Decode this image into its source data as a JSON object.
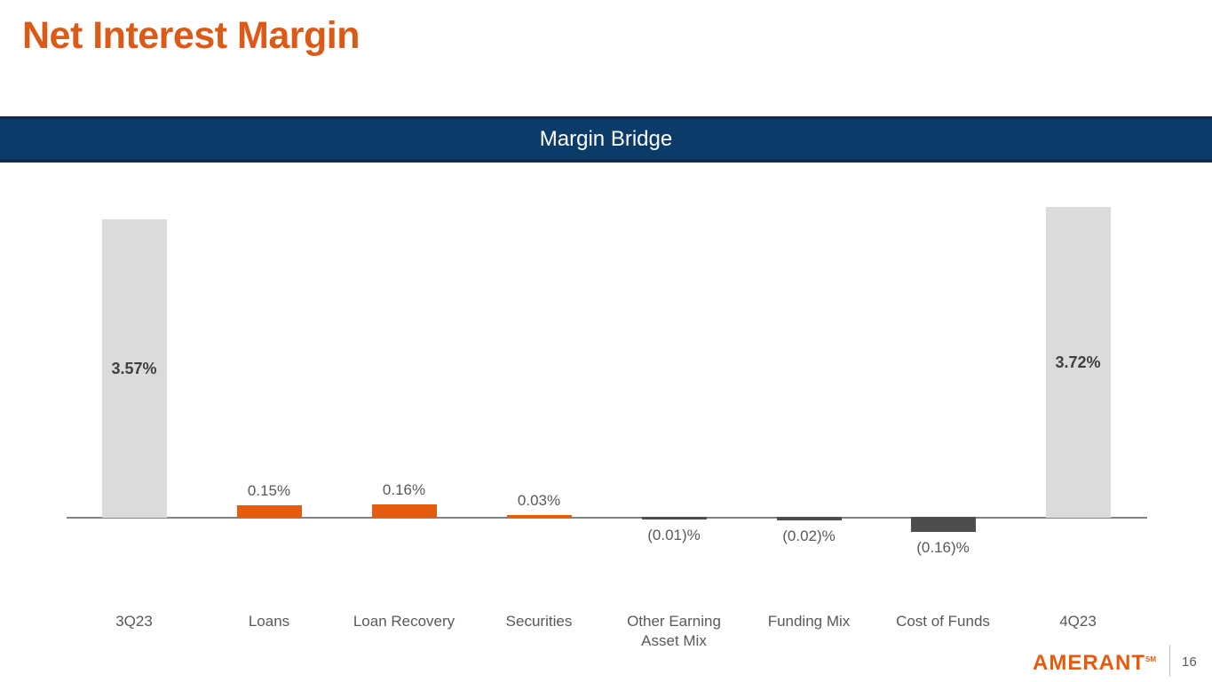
{
  "slide": {
    "title": "Net Interest Margin",
    "banner_title": "Margin Bridge",
    "page_number": "16",
    "logo_text": "AMERANT",
    "logo_mark": "SM"
  },
  "colors": {
    "title_orange": "#DC5A17",
    "logo_orange": "#E8590C",
    "banner_navy": "#0B3C69",
    "banner_border": "#0E2C4E",
    "bar_total": "#DBDBDB",
    "bar_increase": "#E55C0E",
    "bar_decrease": "#4D4D4D",
    "axis_gray": "#828282",
    "label_gray": "#595959",
    "value_dark": "#3F3F3F"
  },
  "chart_data": {
    "type": "bar",
    "subtype": "waterfall",
    "title": "Margin Bridge",
    "unit": "%",
    "grid": false,
    "legend": "none",
    "categories": [
      "3Q23",
      "Loans",
      "Loan Recovery",
      "Securities",
      "Other Earning Asset Mix",
      "Funding Mix",
      "Cost of Funds",
      "4Q23"
    ],
    "values": [
      3.57,
      0.15,
      0.16,
      0.03,
      -0.01,
      -0.02,
      -0.16,
      3.72
    ],
    "value_labels": [
      "3.57%",
      "0.15%",
      "0.16%",
      "0.03%",
      "(0.01)%",
      "(0.02)%",
      "(0.16)%",
      "3.72%"
    ],
    "roles": [
      "total",
      "increase",
      "increase",
      "increase",
      "decrease",
      "decrease",
      "decrease",
      "total"
    ],
    "ylim": [
      -0.2,
      3.72
    ]
  }
}
